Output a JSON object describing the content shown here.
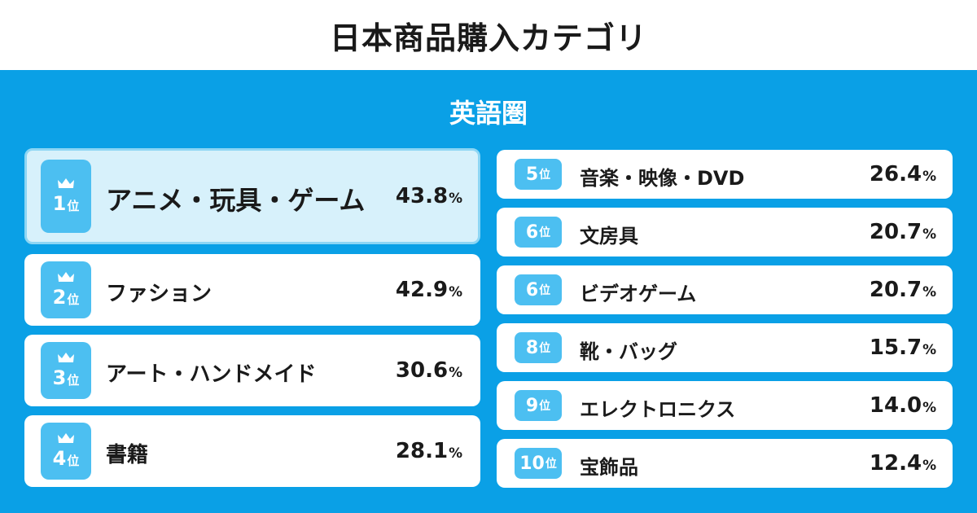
{
  "title": "日本商品購入カテゴリ",
  "subtitle": "英語圏",
  "rank_unit": "位",
  "percent_sign": "%",
  "colors": {
    "accent": "#0aa0e6",
    "badge": "#4cbff1",
    "highlight_bg": "#d7f1fb",
    "text": "#1a1a1a"
  },
  "chart_data": {
    "type": "table",
    "title": "日本商品購入カテゴリ",
    "subtitle": "英語圏",
    "rows": [
      {
        "rank": "1",
        "category": "アニメ・玩具・ゲーム",
        "value": "43.8"
      },
      {
        "rank": "2",
        "category": "ファション",
        "value": "42.9"
      },
      {
        "rank": "3",
        "category": "アート・ハンドメイド",
        "value": "30.6"
      },
      {
        "rank": "4",
        "category": "書籍",
        "value": "28.1"
      },
      {
        "rank": "5",
        "category": "音楽・映像・DVD",
        "value": "26.4"
      },
      {
        "rank": "6",
        "category": "文房具",
        "value": "20.7"
      },
      {
        "rank": "6",
        "category": "ビデオゲーム",
        "value": "20.7"
      },
      {
        "rank": "8",
        "category": "靴・バッグ",
        "value": "15.7"
      },
      {
        "rank": "9",
        "category": "エレクトロニクス",
        "value": "14.0"
      },
      {
        "rank": "10",
        "category": "宝飾品",
        "value": "12.4"
      }
    ]
  }
}
